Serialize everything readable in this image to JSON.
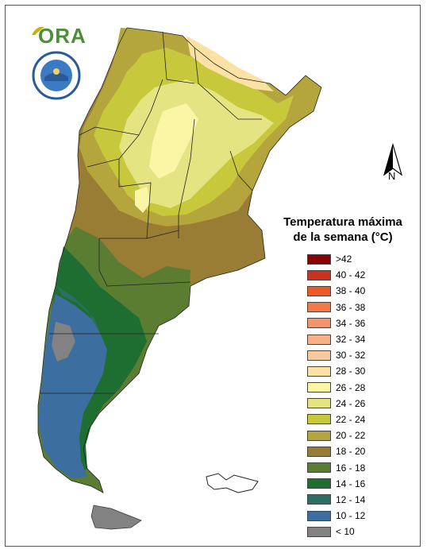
{
  "logo": {
    "text": "ORA",
    "emblem_icon": "smn-emblem-icon"
  },
  "north_arrow": {
    "label": "N"
  },
  "legend": {
    "title_line1": "Temperatura máxima",
    "title_line2": "de la semana (°C)",
    "items": [
      {
        "label": ">42",
        "color": "#8b0000"
      },
      {
        "label": "40 - 42",
        "color": "#c8321e"
      },
      {
        "label": "38 - 40",
        "color": "#f05a28"
      },
      {
        "label": "36 - 38",
        "color": "#f37a48"
      },
      {
        "label": "34 - 36",
        "color": "#f5946a"
      },
      {
        "label": "32 - 34",
        "color": "#f7b08a"
      },
      {
        "label": "30 - 32",
        "color": "#f8c89e"
      },
      {
        "label": "28 - 30",
        "color": "#fbe1a4"
      },
      {
        "label": "26 - 28",
        "color": "#fbf5a6"
      },
      {
        "label": "24 - 26",
        "color": "#e4e482"
      },
      {
        "label": "22 - 24",
        "color": "#c8c83c"
      },
      {
        "label": "20 - 22",
        "color": "#b4a53c"
      },
      {
        "label": "18 - 20",
        "color": "#9a7d34"
      },
      {
        "label": "16 - 18",
        "color": "#5a7d32"
      },
      {
        "label": "14 - 16",
        "color": "#1e6e32"
      },
      {
        "label": "12 - 14",
        "color": "#2d6e64"
      },
      {
        "label": "10 - 12",
        "color": "#3c6ea0"
      },
      {
        "label": "< 10",
        "color": "#828282"
      }
    ]
  }
}
